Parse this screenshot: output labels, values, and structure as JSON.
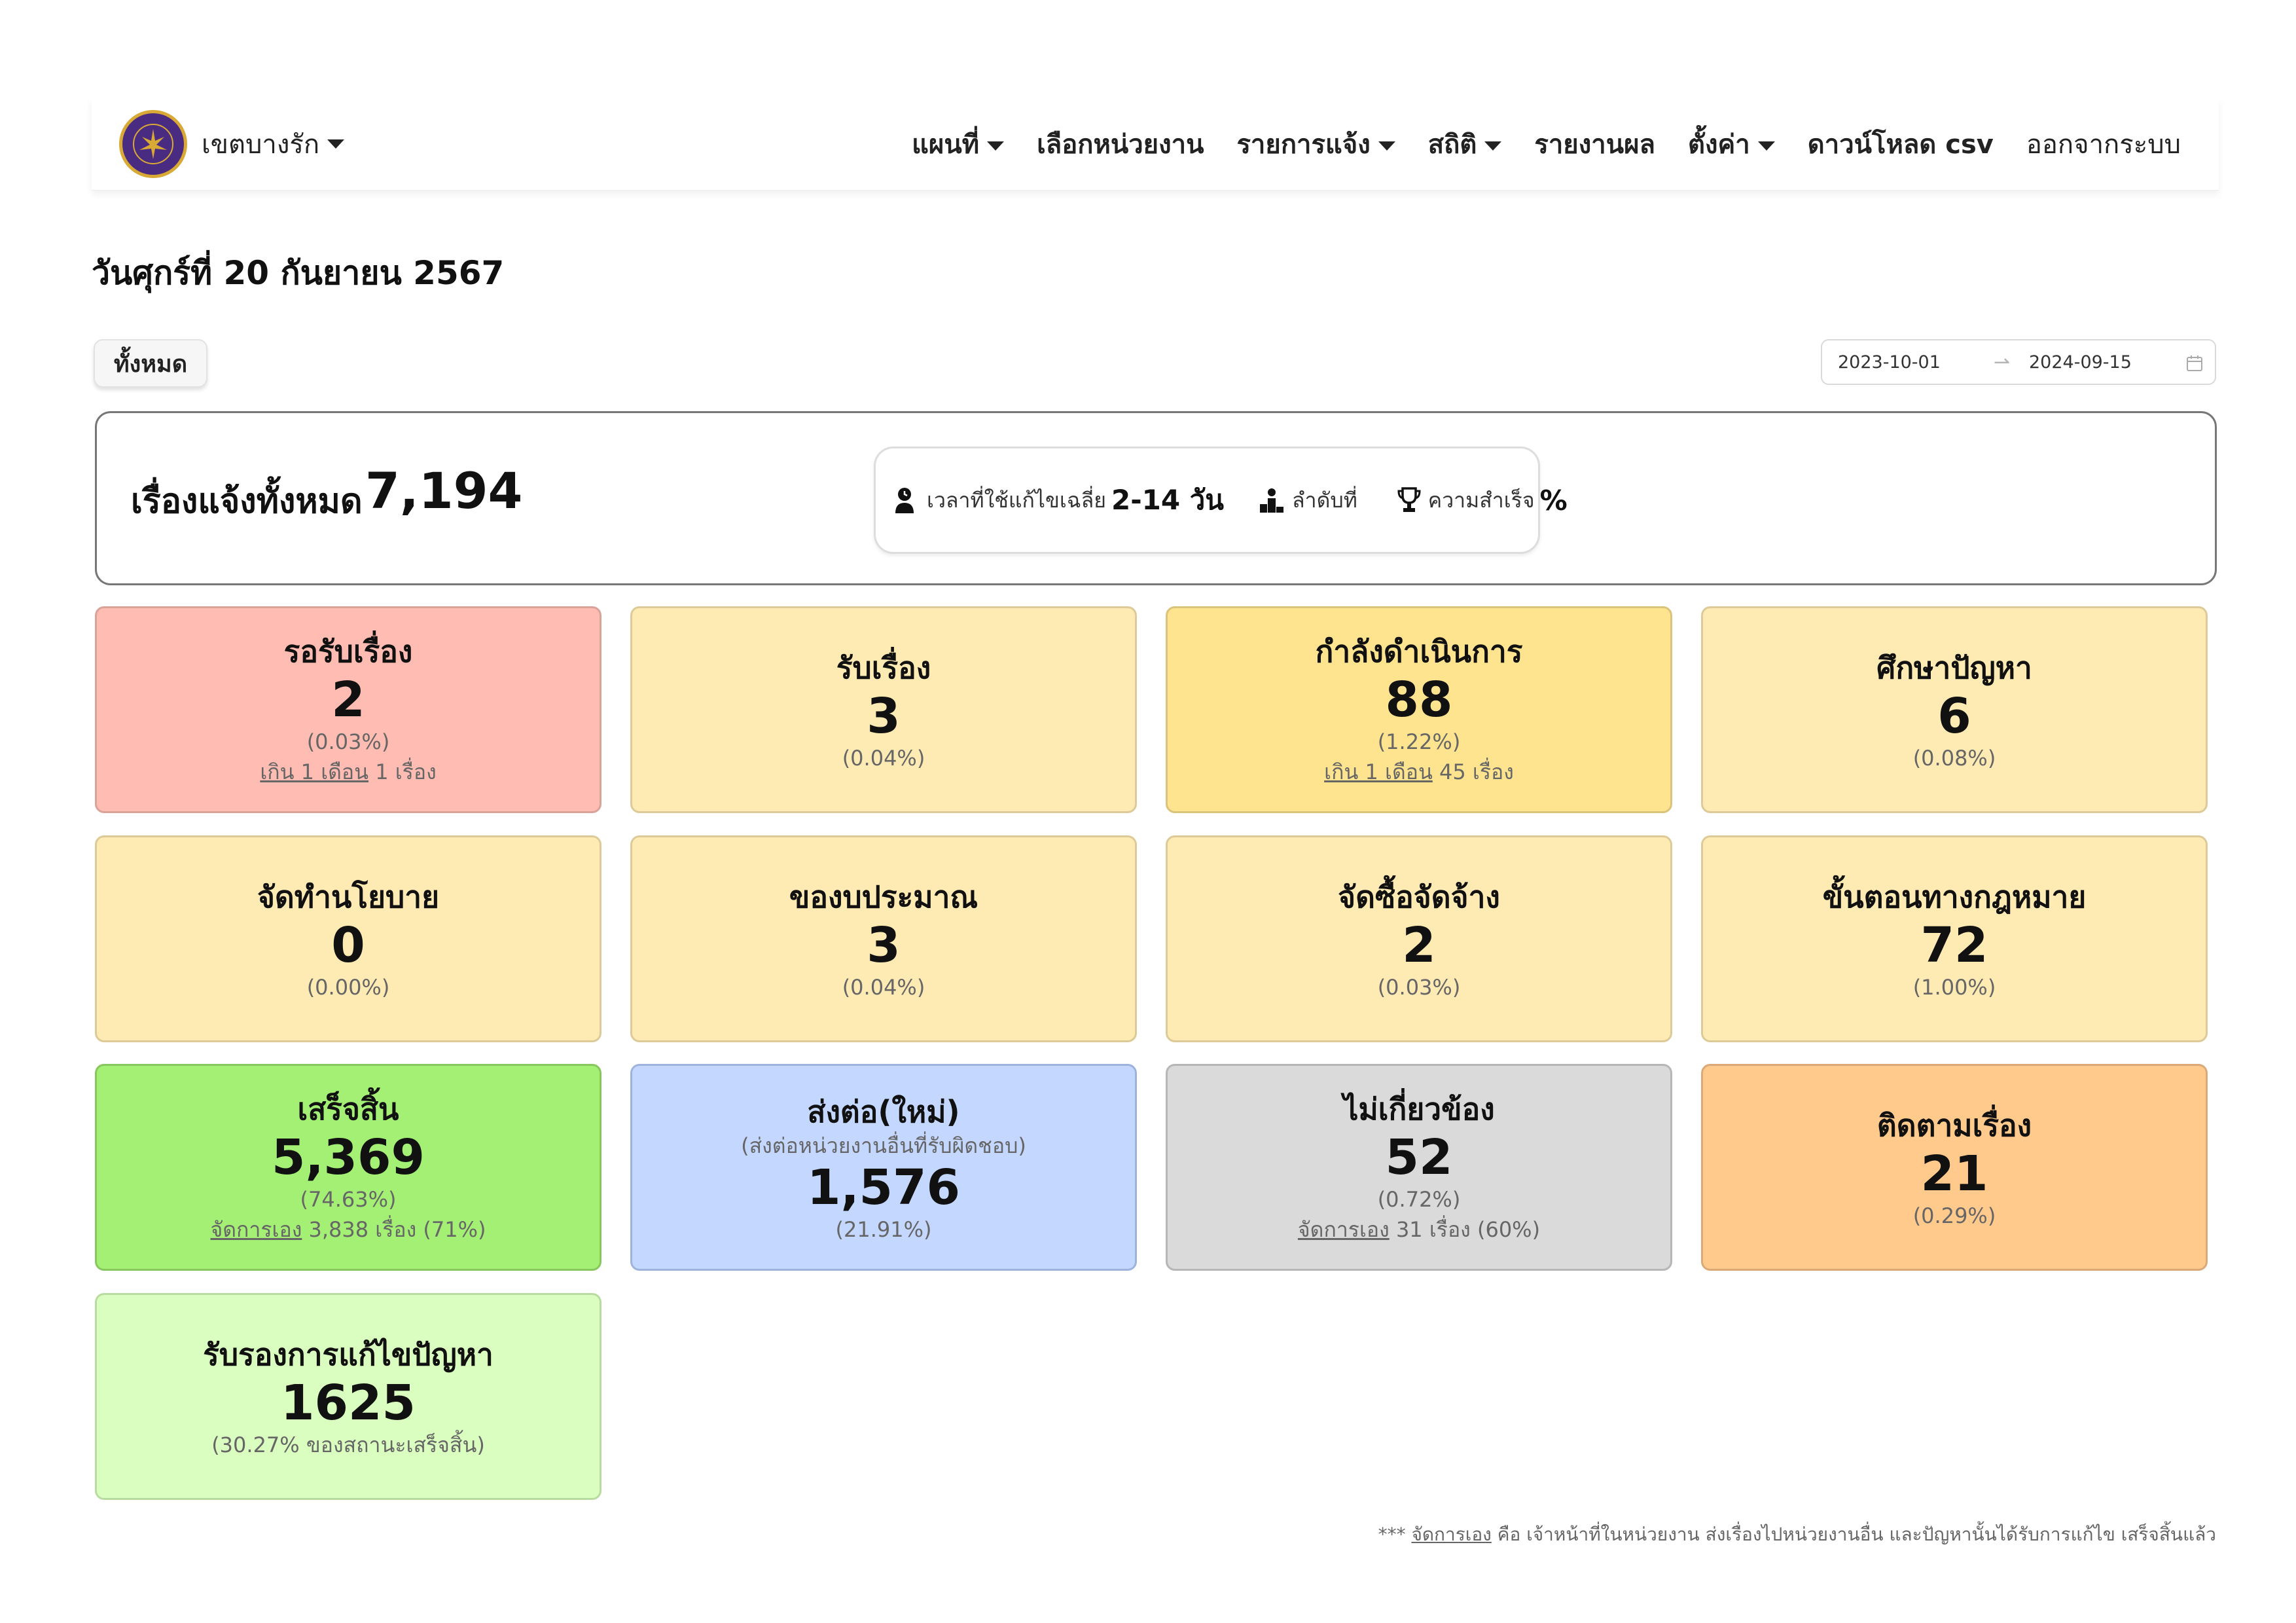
{
  "navbar": {
    "district": "เขตบางรัก",
    "menu": [
      {
        "label": "แผนที่",
        "dropdown": true
      },
      {
        "label": "เลือกหน่วยงาน",
        "dropdown": false
      },
      {
        "label": "รายการแจ้ง",
        "dropdown": true
      },
      {
        "label": "สถิติ",
        "dropdown": true
      },
      {
        "label": "รายงานผล",
        "dropdown": false
      },
      {
        "label": "ตั้งค่า",
        "dropdown": true
      },
      {
        "label": "ดาวน์โหลด csv",
        "dropdown": false
      },
      {
        "label": "ออกจากระบบ",
        "dropdown": false
      }
    ]
  },
  "date_title": "วันศุกร์ที่ 20 กันยายน 2567",
  "filter": {
    "all_label": "ทั้งหมด",
    "range_start": "2023-10-01",
    "range_end": "2024-09-15"
  },
  "summary": {
    "label": "เรื่องแจ้งทั้งหมด",
    "total": "7,194",
    "avg_time_label": "เวลาที่ใช้แก้ไขเฉลี่ย",
    "avg_time_value": "2-14 วัน",
    "rank_label": "ลำดับที่",
    "rank_value": "",
    "success_label": "ความสำเร็จ",
    "success_value": "%"
  },
  "cards": {
    "waiting": {
      "title": "รอรับเรื่อง",
      "value": "2",
      "percent": "(0.03%)",
      "extra_link": "เกิน 1 เดือน",
      "extra_text": " 1 เรื่อง"
    },
    "received": {
      "title": "รับเรื่อง",
      "value": "3",
      "percent": "(0.04%)"
    },
    "in_progress": {
      "title": "กำลังดำเนินการ",
      "value": "88",
      "percent": "(1.22%)",
      "extra_link": "เกิน 1 เดือน",
      "extra_text": " 45 เรื่อง"
    },
    "study": {
      "title": "ศึกษาปัญหา",
      "value": "6",
      "percent": "(0.08%)"
    },
    "policy": {
      "title": "จัดทำนโยบาย",
      "value": "0",
      "percent": "(0.00%)"
    },
    "budget": {
      "title": "ของบประมาณ",
      "value": "3",
      "percent": "(0.04%)"
    },
    "procurement": {
      "title": "จัดซื้อจัดจ้าง",
      "value": "2",
      "percent": "(0.03%)"
    },
    "legal": {
      "title": "ขั้นตอนทางกฎหมาย",
      "value": "72",
      "percent": "(1.00%)"
    },
    "done": {
      "title": "เสร็จสิ้น",
      "value": "5,369",
      "percent": "(74.63%)",
      "extra_link": "จัดการเอง",
      "extra_text": " 3,838 เรื่อง (71%)"
    },
    "forwarded": {
      "title": "ส่งต่อ(ใหม่)",
      "subtitle": "(ส่งต่อหน่วยงานอื่นที่รับผิดชอบ)",
      "value": "1,576",
      "percent": "(21.91%)"
    },
    "irrelevant": {
      "title": "ไม่เกี่ยวข้อง",
      "value": "52",
      "percent": "(0.72%)",
      "extra_link": "จัดการเอง",
      "extra_text": " 31 เรื่อง (60%)"
    },
    "follow_up": {
      "title": "ติดตามเรื่อง",
      "value": "21",
      "percent": "(0.29%)"
    },
    "acknowledged": {
      "title": "รับรองการแก้ไขปัญหา",
      "value": "1625",
      "percent": "(30.27% ของสถานะเสร็จสิ้น)"
    }
  },
  "footnote": {
    "prefix": "*** ",
    "link": "จัดการเอง",
    "text": " คือ เจ้าหน้าที่ในหน่วยงาน ส่งเรื่องไปหน่วยงานอื่น และปัญหานั้นได้รับการแก้ไข เสร็จสิ้นแล้ว"
  }
}
